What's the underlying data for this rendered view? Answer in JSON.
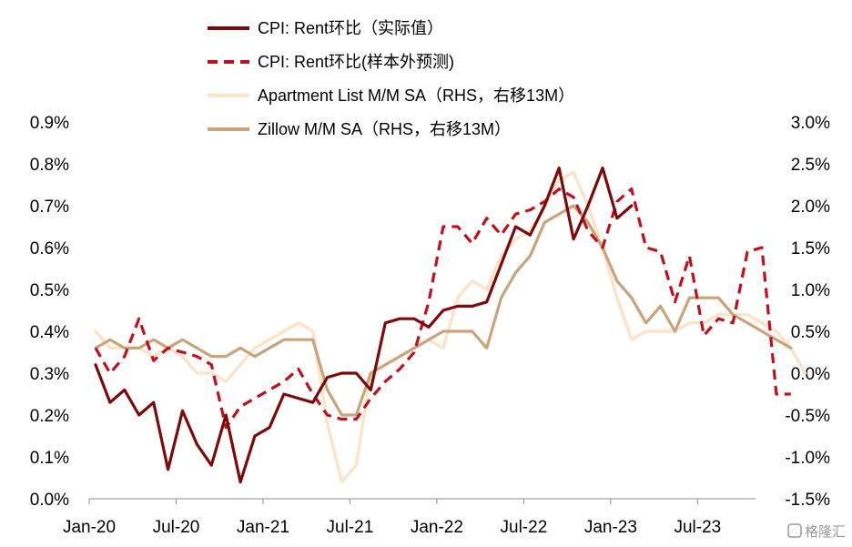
{
  "chart_data": {
    "type": "line",
    "title": "",
    "x_ticks": [
      "Jan-20",
      "Jul-20",
      "Jan-21",
      "Jul-21",
      "Jan-22",
      "Jul-22",
      "Jan-23",
      "Jul-23"
    ],
    "y_left": {
      "min": 0.0,
      "max": 0.9,
      "ticks": [
        "0.0%",
        "0.1%",
        "0.2%",
        "0.3%",
        "0.4%",
        "0.5%",
        "0.6%",
        "0.7%",
        "0.8%",
        "0.9%"
      ]
    },
    "y_right": {
      "min": -1.5,
      "max": 3.0,
      "ticks": [
        "-1.5%",
        "-1.0%",
        "-0.5%",
        "0.0%",
        "0.5%",
        "1.0%",
        "1.5%",
        "2.0%",
        "2.5%",
        "3.0%"
      ]
    },
    "x_start": "2020-01",
    "series": [
      {
        "name": "CPI: Rent环比（实际值）",
        "axis": "left",
        "color": "#7b0a0a",
        "dash": "solid",
        "values": [
          0.32,
          0.23,
          0.26,
          0.2,
          0.23,
          0.07,
          0.21,
          0.13,
          0.08,
          0.2,
          0.04,
          0.15,
          0.17,
          0.25,
          0.24,
          0.23,
          0.29,
          0.3,
          0.3,
          0.26,
          0.42,
          0.43,
          0.43,
          0.41,
          0.45,
          0.46,
          0.46,
          0.47,
          0.56,
          0.65,
          0.63,
          0.7,
          0.79,
          0.62,
          0.7,
          0.79,
          0.67,
          0.7
        ]
      },
      {
        "name": "CPI: Rent环比(样本外预测)",
        "axis": "left",
        "color": "#c0101e",
        "dash": "dashed",
        "values": [
          0.36,
          0.3,
          0.34,
          0.43,
          0.33,
          0.36,
          0.35,
          0.34,
          0.32,
          0.17,
          0.22,
          0.24,
          0.26,
          0.28,
          0.31,
          0.25,
          0.2,
          0.19,
          0.19,
          0.24,
          0.28,
          0.31,
          0.35,
          0.47,
          0.65,
          0.65,
          0.61,
          0.67,
          0.63,
          0.68,
          0.69,
          0.71,
          0.74,
          0.72,
          0.64,
          0.6,
          0.71,
          0.74,
          0.6,
          0.59,
          0.47,
          0.58,
          0.39,
          0.43,
          0.42,
          0.59,
          0.6,
          0.25,
          0.25
        ]
      },
      {
        "name": "Apartment List  M/M SA（RHS，右移13M）",
        "axis": "right",
        "color": "#fde4c8",
        "dash": "solid",
        "values": [
          0.5,
          0.3,
          0.3,
          0.3,
          0.2,
          0.3,
          0.2,
          0.0,
          0.0,
          -0.1,
          0.1,
          0.3,
          0.4,
          0.5,
          0.6,
          0.5,
          -0.6,
          -1.3,
          -1.1,
          0.0,
          0.1,
          0.2,
          0.3,
          0.4,
          0.3,
          0.9,
          1.1,
          1.0,
          1.4,
          1.6,
          1.7,
          2.0,
          2.3,
          2.4,
          2.0,
          1.5,
          0.9,
          0.4,
          0.5,
          0.5,
          0.5,
          0.6,
          0.6,
          0.7,
          0.7,
          0.7,
          0.6,
          0.5,
          0.3,
          0.0
        ]
      },
      {
        "name": "Zillow M/M SA（RHS，右移13M）",
        "axis": "right",
        "color": "#c9a37a",
        "dash": "solid",
        "values": [
          0.3,
          0.4,
          0.3,
          0.3,
          0.4,
          0.3,
          0.4,
          0.3,
          0.2,
          0.2,
          0.3,
          0.2,
          0.3,
          0.4,
          0.4,
          0.4,
          -0.2,
          -0.5,
          -0.5,
          0.0,
          0.1,
          0.2,
          0.3,
          0.4,
          0.5,
          0.5,
          0.5,
          0.3,
          0.9,
          1.2,
          1.4,
          1.8,
          1.9,
          2.0,
          1.8,
          1.5,
          1.1,
          0.9,
          0.6,
          0.8,
          0.5,
          0.9,
          0.9,
          0.9,
          0.7,
          0.6,
          0.5,
          0.4,
          0.3
        ]
      }
    ],
    "legend_position": "top-center",
    "grid": false
  },
  "watermark": "格隆汇"
}
